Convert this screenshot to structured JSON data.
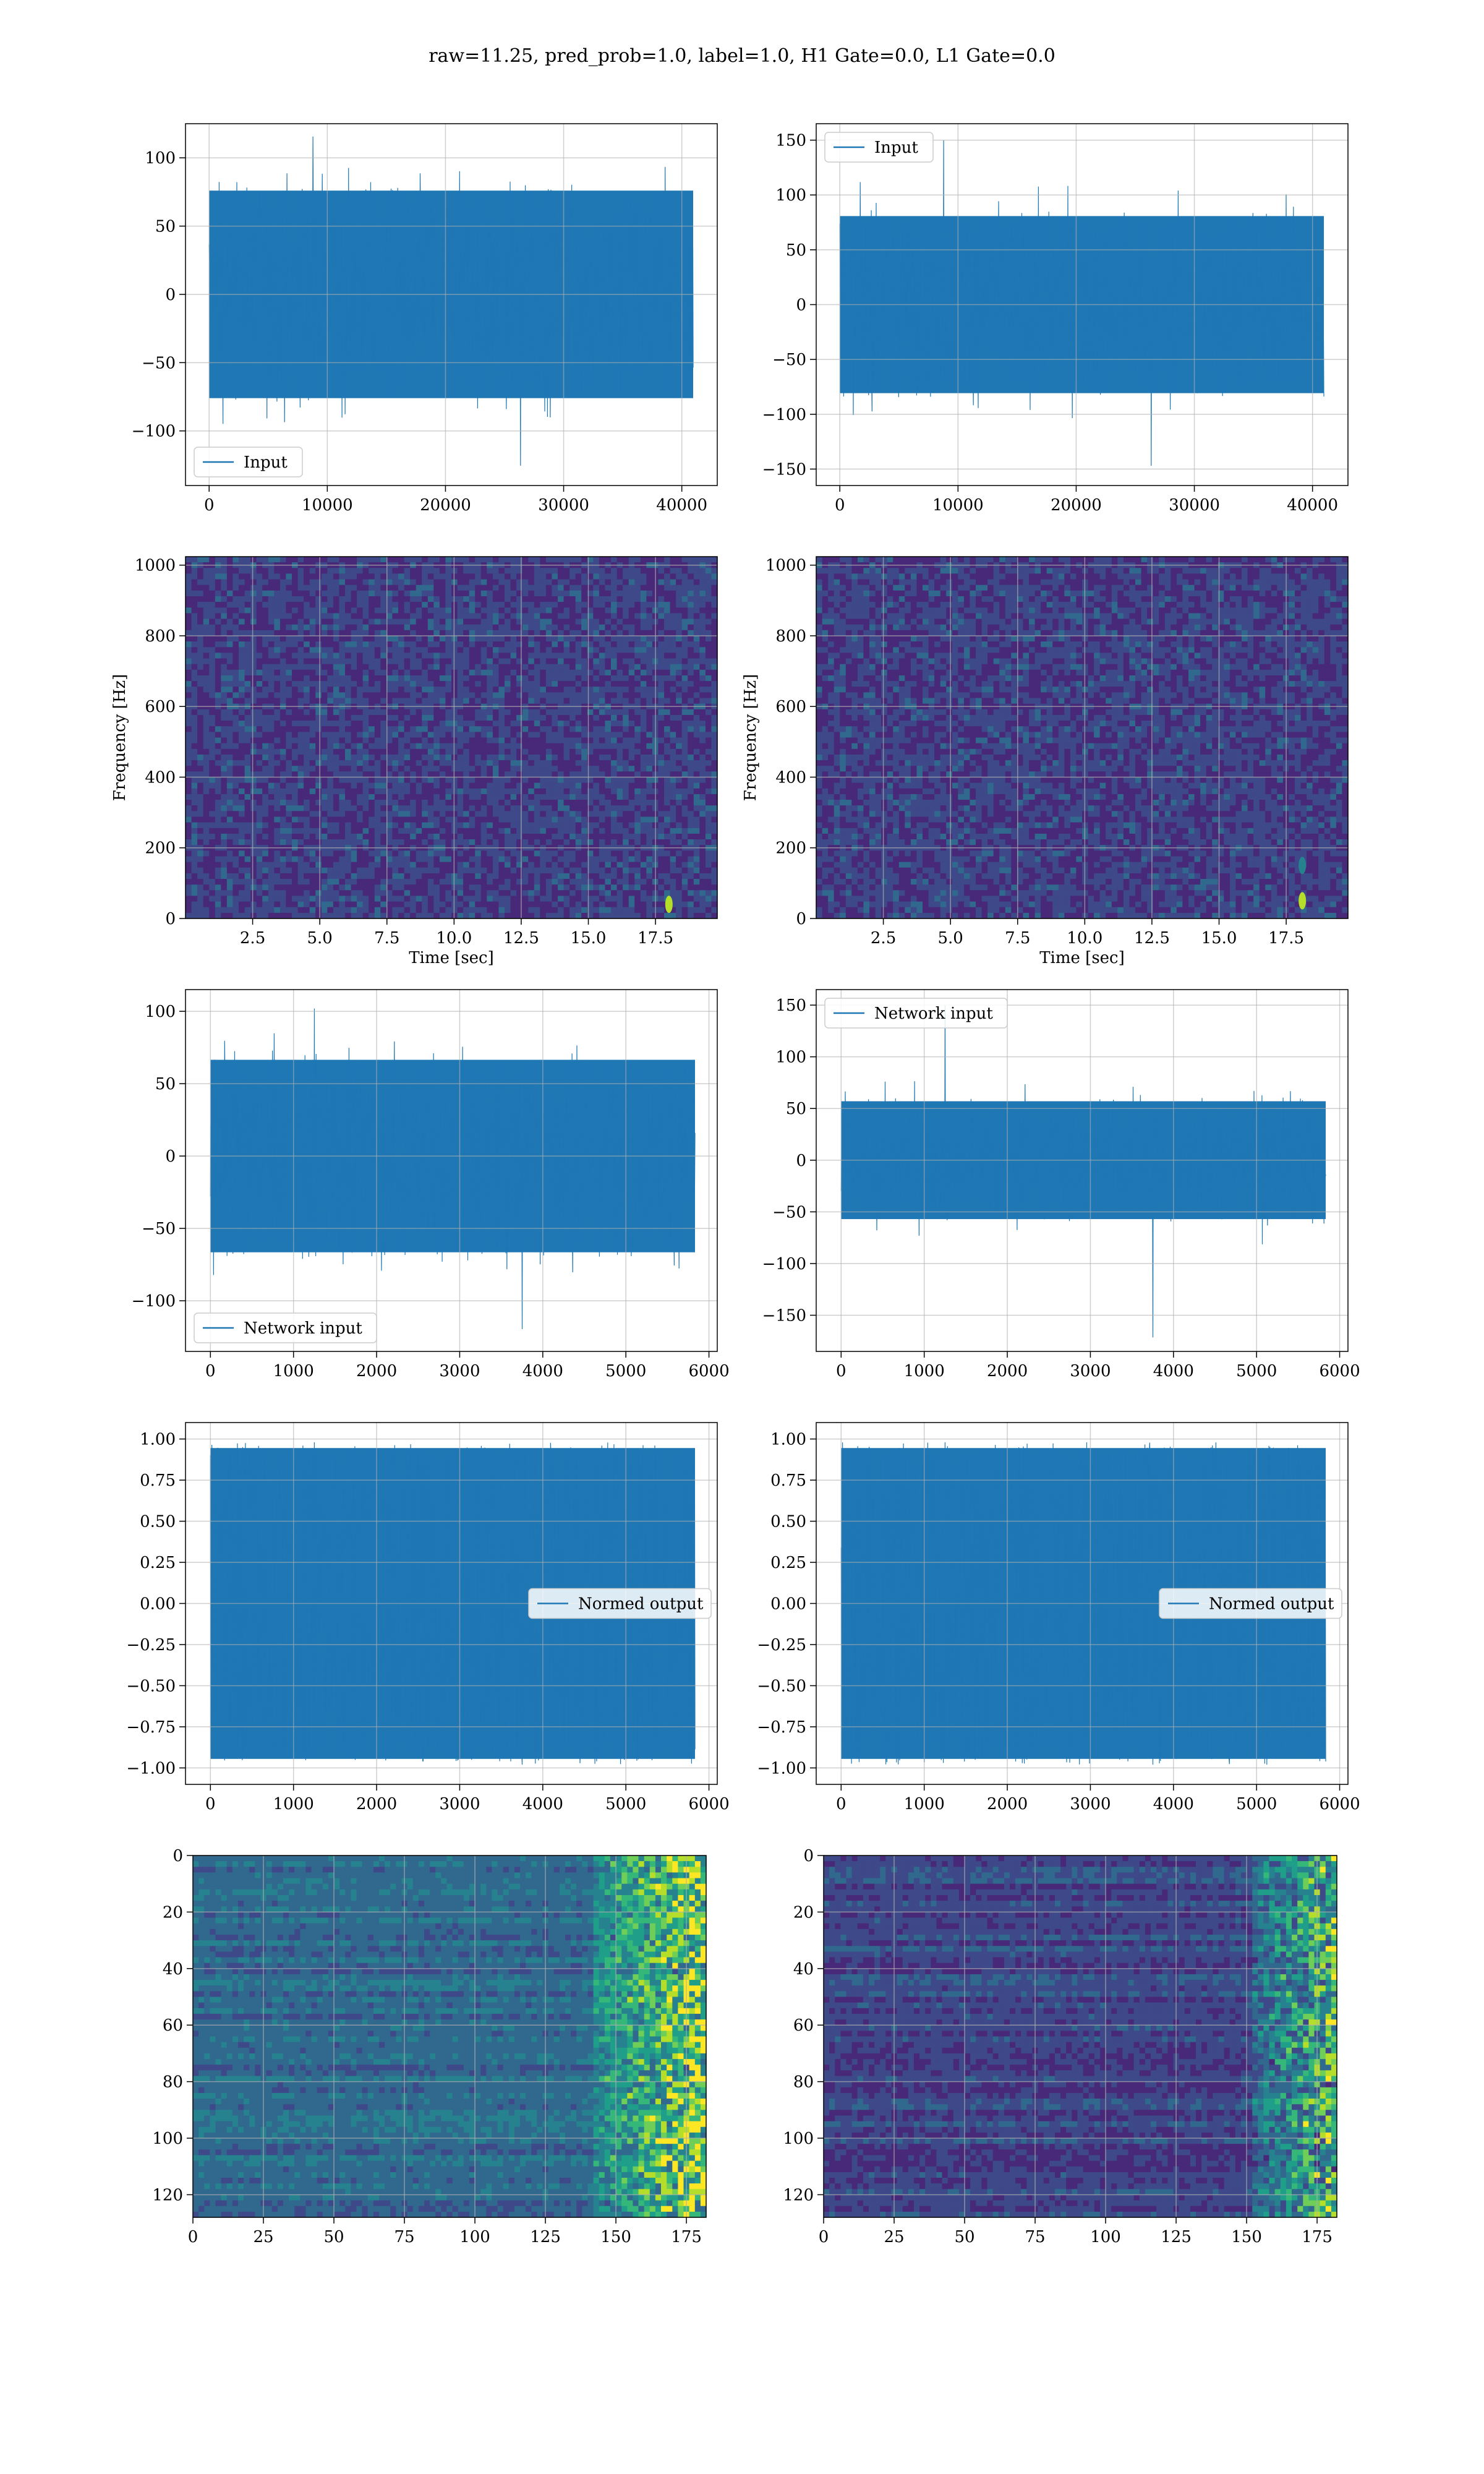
{
  "figure": {
    "title": "raw=11.25, pred_prob=1.0, label=1.0, H1 Gate=0.0, L1 Gate=0.0"
  },
  "colors": {
    "line": "#1f77b4",
    "grid": "#b0b0b0",
    "viridis": [
      "#440154",
      "#482878",
      "#3e4989",
      "#31688e",
      "#26828e",
      "#1f9e89",
      "#35b779",
      "#6ece58",
      "#b5de2b",
      "#fde725"
    ]
  },
  "chart_data": [
    {
      "id": "input_h1",
      "type": "line",
      "legend": {
        "label": "Input",
        "placement": "lower-left"
      },
      "xlim": [
        -2000,
        43000
      ],
      "ylim": [
        -140,
        125
      ],
      "xticks": [
        "0",
        "10000",
        "20000",
        "30000",
        "40000"
      ],
      "yticks": [
        "−100",
        "−50",
        "0",
        "50",
        "100"
      ],
      "grid": true,
      "series": [
        {
          "x_range": [
            0,
            40960
          ],
          "typical_envelope": [
            -80,
            80
          ],
          "peak_max": 118,
          "peak_min": -128
        }
      ]
    },
    {
      "id": "input_l1",
      "type": "line",
      "legend": {
        "label": "Input",
        "placement": "upper-left"
      },
      "xlim": [
        -2000,
        43000
      ],
      "ylim": [
        -165,
        165
      ],
      "xticks": [
        "0",
        "10000",
        "20000",
        "30000",
        "40000"
      ],
      "yticks": [
        "−150",
        "−100",
        "−50",
        "0",
        "50",
        "100",
        "150"
      ],
      "grid": true,
      "series": [
        {
          "x_range": [
            0,
            40960
          ],
          "typical_envelope": [
            -85,
            85
          ],
          "peak_max": 153,
          "peak_min": -150
        }
      ]
    },
    {
      "id": "spec_h1",
      "type": "heatmap",
      "colormap": "viridis",
      "xlim": [
        0,
        19.8
      ],
      "ylim": [
        0,
        1024
      ],
      "xticks": [
        "2.5",
        "5.0",
        "7.5",
        "10.0",
        "12.5",
        "15.0",
        "17.5"
      ],
      "yticks": [
        "0",
        "200",
        "400",
        "600",
        "800",
        "1000"
      ],
      "xlabel": "Time [sec]",
      "ylabel": "Frequency [Hz]",
      "grid": true,
      "hotspots": [
        {
          "t": 18.0,
          "f": 40,
          "level": 0.9
        }
      ]
    },
    {
      "id": "spec_l1",
      "type": "heatmap",
      "colormap": "viridis",
      "xlim": [
        0,
        19.8
      ],
      "ylim": [
        0,
        1024
      ],
      "xticks": [
        "2.5",
        "5.0",
        "7.5",
        "10.0",
        "12.5",
        "15.0",
        "17.5"
      ],
      "yticks": [
        "0",
        "200",
        "400",
        "600",
        "800",
        "1000"
      ],
      "xlabel": "Time [sec]",
      "ylabel": "Frequency [Hz]",
      "grid": true,
      "hotspots": [
        {
          "t": 18.1,
          "f": 50,
          "level": 0.85
        },
        {
          "t": 18.1,
          "f": 150,
          "level": 0.45
        }
      ]
    },
    {
      "id": "net_h1",
      "type": "line",
      "legend": {
        "label": "Network input",
        "placement": "lower-left"
      },
      "xlim": [
        -300,
        6100
      ],
      "ylim": [
        -135,
        115
      ],
      "xticks": [
        "0",
        "1000",
        "2000",
        "3000",
        "4000",
        "5000",
        "6000"
      ],
      "yticks": [
        "−100",
        "−50",
        "0",
        "50",
        "100"
      ],
      "grid": true,
      "series": [
        {
          "x_range": [
            0,
            5832
          ],
          "typical_envelope": [
            -70,
            70
          ],
          "peak_max": 104,
          "peak_min": -122
        }
      ]
    },
    {
      "id": "net_l1",
      "type": "line",
      "legend": {
        "label": "Network input",
        "placement": "upper-left"
      },
      "xlim": [
        -300,
        6100
      ],
      "ylim": [
        -185,
        165
      ],
      "xticks": [
        "0",
        "1000",
        "2000",
        "3000",
        "4000",
        "5000",
        "6000"
      ],
      "yticks": [
        "−150",
        "−100",
        "−50",
        "0",
        "50",
        "100",
        "150"
      ],
      "grid": true,
      "series": [
        {
          "x_range": [
            0,
            5832
          ],
          "typical_envelope": [
            -60,
            60
          ],
          "peak_max": 153,
          "peak_min": -175
        }
      ]
    },
    {
      "id": "normed_h1",
      "type": "line",
      "legend": {
        "label": "Normed output",
        "placement": "center-right"
      },
      "xlim": [
        -300,
        6100
      ],
      "ylim": [
        -1.1,
        1.1
      ],
      "xticks": [
        "0",
        "1000",
        "2000",
        "3000",
        "4000",
        "5000",
        "6000"
      ],
      "yticks": [
        "−1.00",
        "−0.75",
        "−0.50",
        "−0.25",
        "0.00",
        "0.25",
        "0.50",
        "0.75",
        "1.00"
      ],
      "grid": true,
      "series": [
        {
          "x_range": [
            0,
            5832
          ],
          "typical_envelope": [
            -0.9,
            0.9
          ],
          "peak_max": 1.0,
          "peak_min": -1.0
        }
      ]
    },
    {
      "id": "normed_l1",
      "type": "line",
      "legend": {
        "label": "Normed output",
        "placement": "center-right"
      },
      "xlim": [
        -300,
        6100
      ],
      "ylim": [
        -1.1,
        1.1
      ],
      "xticks": [
        "0",
        "1000",
        "2000",
        "3000",
        "4000",
        "5000",
        "6000"
      ],
      "yticks": [
        "−1.00",
        "−0.75",
        "−0.50",
        "−0.25",
        "0.00",
        "0.25",
        "0.50",
        "0.75",
        "1.00"
      ],
      "grid": true,
      "series": [
        {
          "x_range": [
            0,
            5832
          ],
          "typical_envelope": [
            -0.9,
            0.9
          ],
          "peak_max": 1.0,
          "peak_min": -1.0
        }
      ]
    },
    {
      "id": "feat_h1",
      "type": "heatmap",
      "colormap": "viridis",
      "xlim": [
        0,
        182
      ],
      "ylim": [
        128,
        0
      ],
      "xticks": [
        "0",
        "25",
        "50",
        "75",
        "100",
        "125",
        "150",
        "175"
      ],
      "yticks": [
        "0",
        "20",
        "40",
        "60",
        "80",
        "100",
        "120"
      ],
      "grid": true,
      "intensity": {
        "baseline": 0.2,
        "bright_from_column": 140
      }
    },
    {
      "id": "feat_l1",
      "type": "heatmap",
      "colormap": "viridis",
      "xlim": [
        0,
        182
      ],
      "ylim": [
        128,
        0
      ],
      "xticks": [
        "0",
        "25",
        "50",
        "75",
        "100",
        "125",
        "150",
        "175"
      ],
      "yticks": [
        "0",
        "20",
        "40",
        "60",
        "80",
        "100",
        "120"
      ],
      "grid": true,
      "intensity": {
        "baseline": 0.08,
        "bright_from_column": 150
      }
    }
  ]
}
